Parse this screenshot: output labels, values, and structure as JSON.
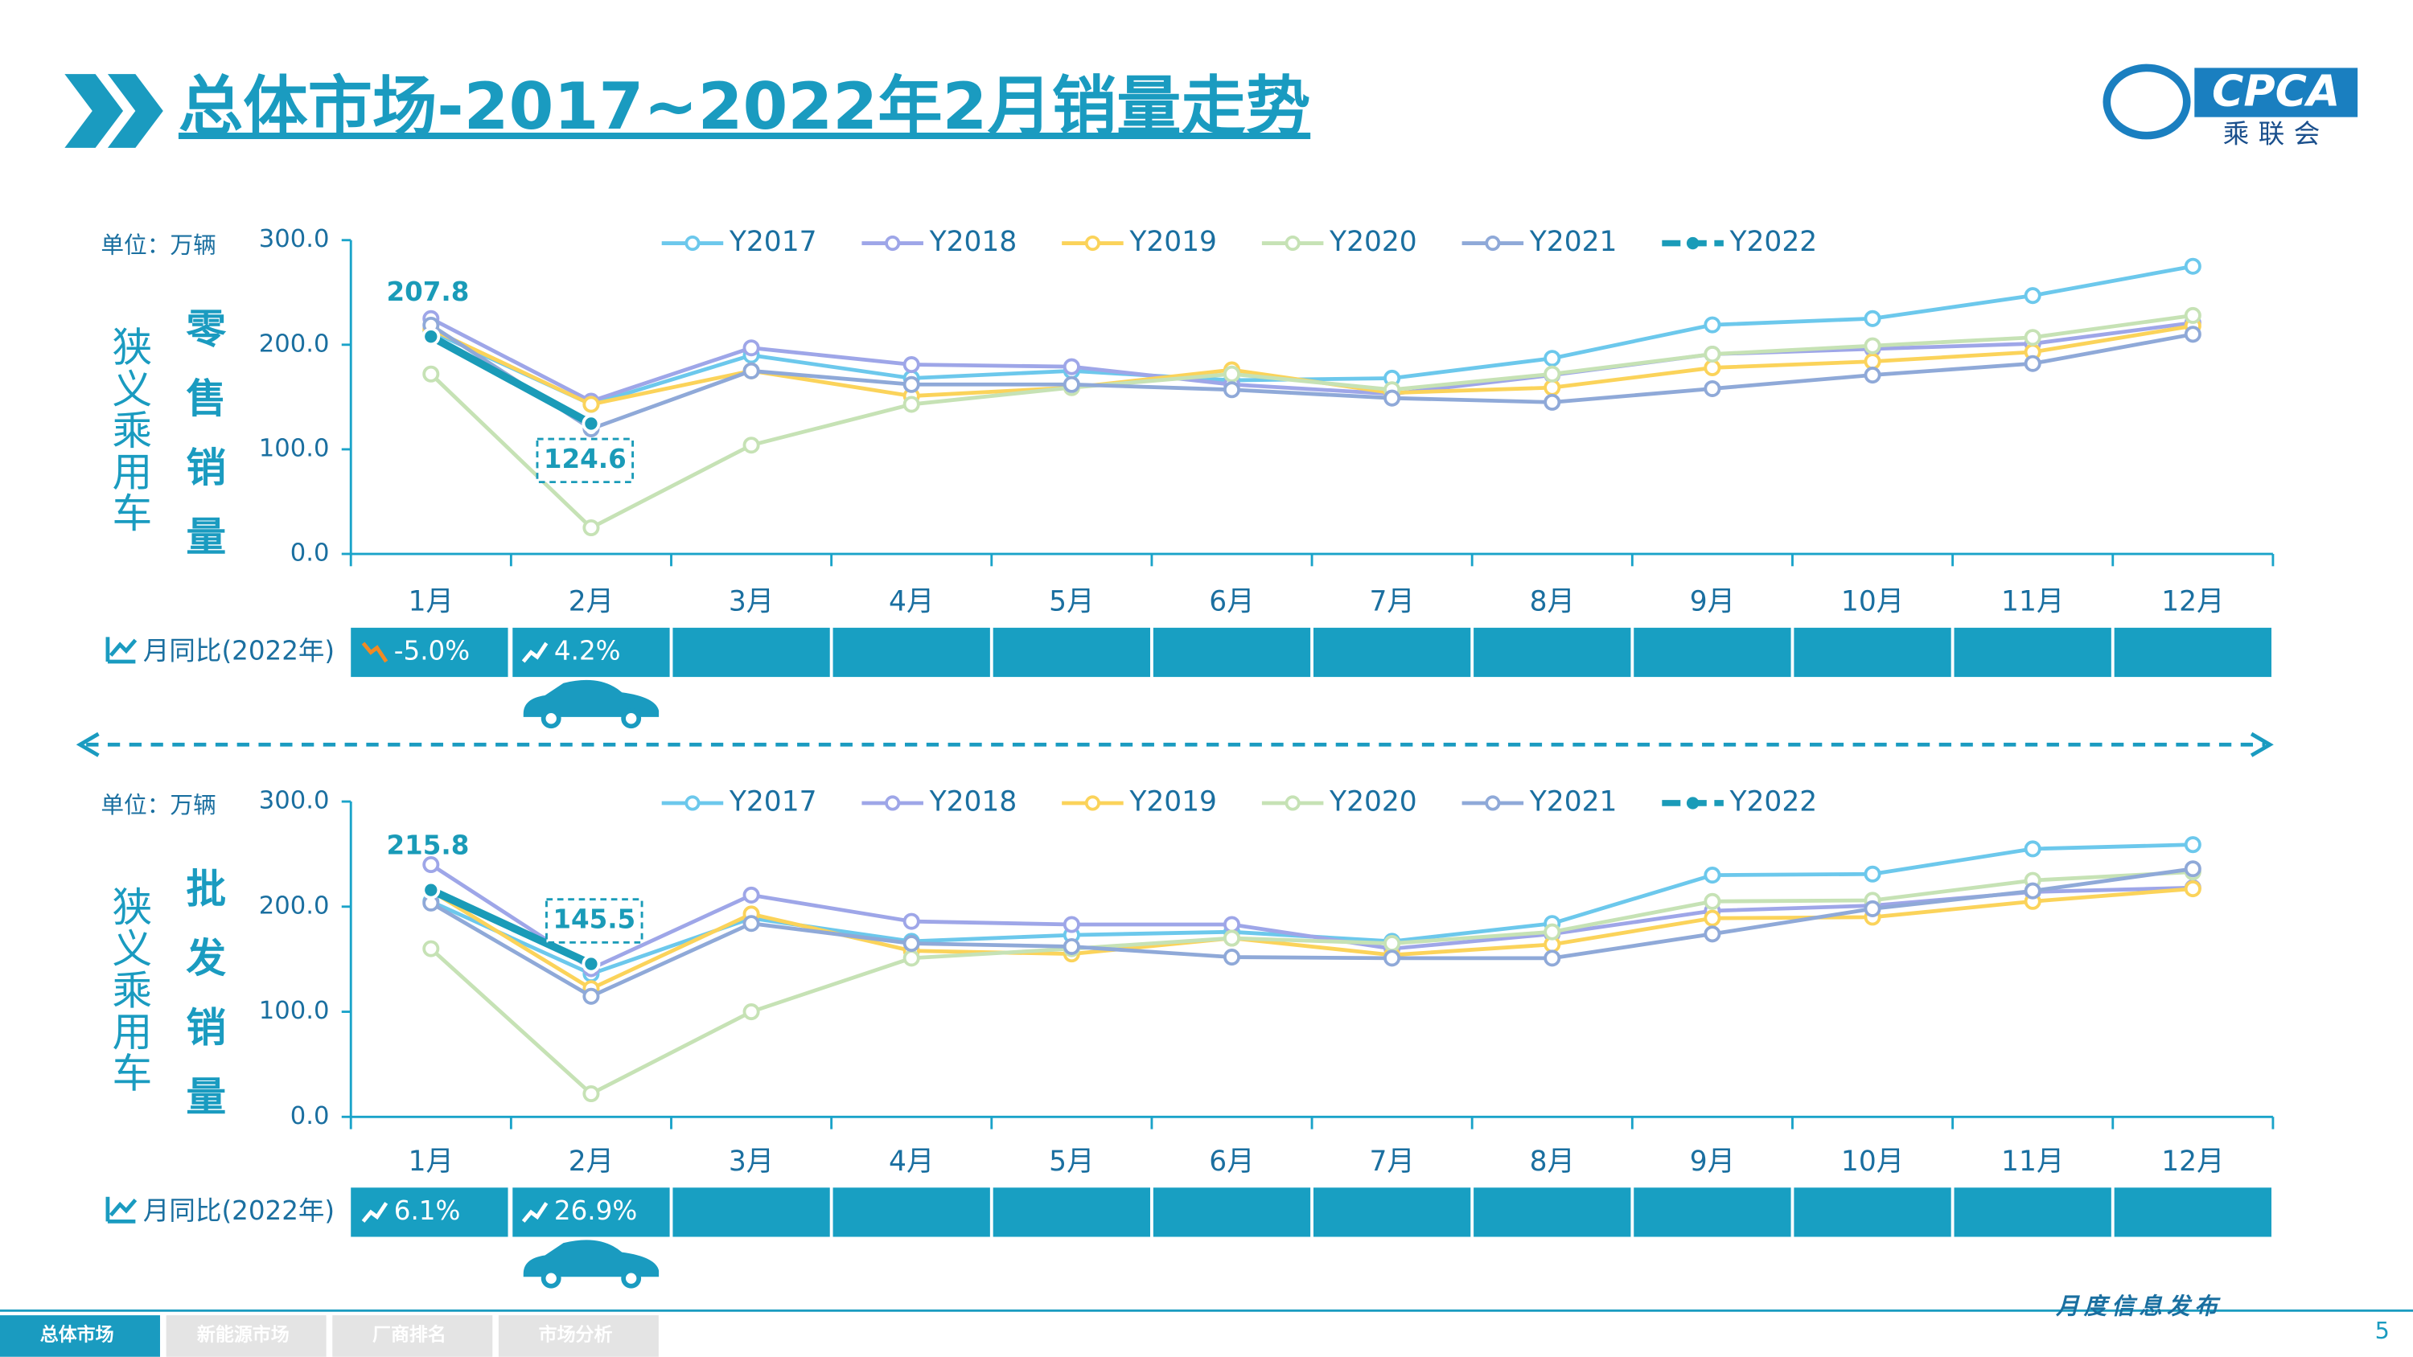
{
  "header": {
    "title": "总体市场-2017~2022年2月销量走势",
    "logo": "CPCA",
    "logo_sub": "乘联会"
  },
  "chart_data": [
    {
      "type": "line",
      "unit": "单位：万辆",
      "side_label": "狭义乘用车",
      "title": "零售销量",
      "categories": [
        "1月",
        "2月",
        "3月",
        "4月",
        "5月",
        "6月",
        "7月",
        "8月",
        "9月",
        "10月",
        "11月",
        "12月"
      ],
      "ylim": [
        0,
        300
      ],
      "yticks": [
        {
          "value": 0,
          "label": "0.0"
        },
        {
          "value": 100,
          "label": "100.0"
        },
        {
          "value": 200,
          "label": "200.0"
        },
        {
          "value": 300,
          "label": "300.0"
        }
      ],
      "series": [
        {
          "name": "Y2017",
          "color": "#6cc8ec",
          "values": [
            213,
            143,
            190,
            168,
            175,
            166,
            168,
            187,
            219,
            225,
            247,
            275
          ]
        },
        {
          "name": "Y2018",
          "color": "#9ea6e8",
          "values": [
            225,
            146,
            197,
            181,
            179,
            162,
            153,
            171,
            191,
            196,
            201,
            221
          ]
        },
        {
          "name": "Y2019",
          "color": "#fbd35a",
          "values": [
            215,
            143,
            175,
            151,
            159,
            176,
            154,
            159,
            178,
            184,
            193,
            218
          ]
        },
        {
          "name": "Y2020",
          "color": "#c6e2b5",
          "values": [
            172,
            25,
            104,
            143,
            159,
            172,
            157,
            172,
            191,
            199,
            207,
            228
          ]
        },
        {
          "name": "Y2021",
          "color": "#8fa9d8",
          "values": [
            218.7,
            119.6,
            175,
            162,
            162,
            157,
            149,
            145,
            158,
            171,
            182,
            210
          ]
        },
        {
          "name": "Y2022",
          "color": "#1a9bb8",
          "values": [
            207.8,
            124.6,
            null,
            null,
            null,
            null,
            null,
            null,
            null,
            null,
            null,
            null
          ]
        }
      ],
      "yoy": {
        "label": "月同比(2022年)",
        "values": [
          -5.0,
          4.2
        ],
        "value_labels": [
          "-5.0%",
          "4.2%"
        ]
      }
    },
    {
      "type": "line",
      "unit": "单位：万辆",
      "side_label": "狭义乘用车",
      "title": "批发销量",
      "categories": [
        "1月",
        "2月",
        "3月",
        "4月",
        "5月",
        "6月",
        "7月",
        "8月",
        "9月",
        "10月",
        "11月",
        "12月"
      ],
      "ylim": [
        0,
        300
      ],
      "yticks": [
        {
          "value": 0,
          "label": "0.0"
        },
        {
          "value": 100,
          "label": "100.0"
        },
        {
          "value": 200,
          "label": "200.0"
        },
        {
          "value": 300,
          "label": "300.0"
        }
      ],
      "series": [
        {
          "name": "Y2017",
          "color": "#6cc8ec",
          "values": [
            205,
            136,
            189,
            167,
            173,
            176,
            167,
            184,
            230,
            231,
            255,
            259
          ]
        },
        {
          "name": "Y2018",
          "color": "#9ea6e8",
          "values": [
            240,
            141,
            211,
            186,
            183,
            183,
            160,
            174,
            196,
            201,
            214,
            218
          ]
        },
        {
          "name": "Y2019",
          "color": "#fbd35a",
          "values": [
            215,
            122,
            193,
            158,
            155,
            170,
            154,
            164,
            189,
            190,
            205,
            217
          ]
        },
        {
          "name": "Y2020",
          "color": "#c6e2b5",
          "values": [
            160,
            22,
            100,
            151,
            160,
            170,
            165,
            176,
            205,
            206,
            225,
            233
          ]
        },
        {
          "name": "Y2021",
          "color": "#8fa9d8",
          "values": [
            203.4,
            114.7,
            184,
            165,
            162,
            152,
            151,
            151,
            174,
            198,
            215,
            236
          ]
        },
        {
          "name": "Y2022",
          "color": "#1a9bb8",
          "values": [
            215.8,
            145.5,
            null,
            null,
            null,
            null,
            null,
            null,
            null,
            null,
            null,
            null
          ]
        }
      ],
      "yoy": {
        "label": "月同比(2022年)",
        "values": [
          6.1,
          26.9
        ],
        "value_labels": [
          "6.1%",
          "26.9%"
        ]
      }
    }
  ],
  "footer": {
    "tabs": [
      "总体市场",
      "新能源市场",
      "厂商排名",
      "市场分析"
    ],
    "note": "月度信息发布",
    "page": 5
  }
}
